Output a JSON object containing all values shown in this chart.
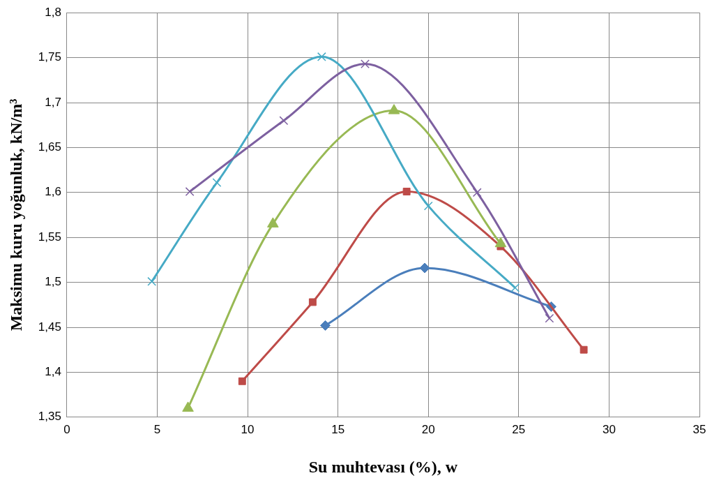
{
  "chart_data": {
    "type": "line",
    "xlabel": "Su muhtevası (%), w",
    "ylabel": "Maksimu kuru yoğunluk, kN/m³",
    "xlim": [
      0,
      35
    ],
    "xticks": [
      0,
      5,
      10,
      15,
      20,
      25,
      30,
      35
    ],
    "ylim": [
      1.35,
      1.8
    ],
    "yticks": [
      {
        "value": 1.35,
        "label": "1,35"
      },
      {
        "value": 1.4,
        "label": "1,4"
      },
      {
        "value": 1.45,
        "label": "1,45"
      },
      {
        "value": 1.5,
        "label": "1,5"
      },
      {
        "value": 1.55,
        "label": "1,55"
      },
      {
        "value": 1.6,
        "label": "1,6"
      },
      {
        "value": 1.65,
        "label": "1,65"
      },
      {
        "value": 1.7,
        "label": "1,7"
      },
      {
        "value": 1.75,
        "label": "1,75"
      },
      {
        "value": 1.8,
        "label": "1,8"
      }
    ],
    "grid": true,
    "legend": false,
    "series": [
      {
        "color": "#4a7ebb",
        "marker": "diamond",
        "x": [
          14.3,
          19.8,
          26.8
        ],
        "values": [
          1.452,
          1.516,
          1.473
        ]
      },
      {
        "color": "#be4b48",
        "marker": "square",
        "x": [
          9.7,
          13.6,
          18.8,
          24,
          28.6
        ],
        "values": [
          1.39,
          1.478,
          1.601,
          1.54,
          1.425
        ]
      },
      {
        "color": "#98b954",
        "marker": "triangle",
        "x": [
          6.7,
          11.4,
          18.1,
          24
        ],
        "values": [
          1.36,
          1.565,
          1.691,
          1.543
        ]
      },
      {
        "color": "#46aac5",
        "marker": "cross",
        "x": [
          4.7,
          8.3,
          14.1,
          20,
          24.8
        ],
        "values": [
          1.501,
          1.611,
          1.751,
          1.585,
          1.494
        ]
      },
      {
        "color": "#7d60a0",
        "marker": "cross",
        "x": [
          6.8,
          12,
          16.5,
          22.7,
          26.7
        ],
        "values": [
          1.601,
          1.68,
          1.743,
          1.6,
          1.46
        ]
      }
    ]
  }
}
